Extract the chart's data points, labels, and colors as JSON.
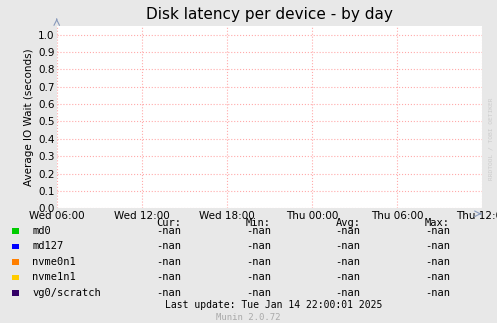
{
  "title": "Disk latency per device - by day",
  "ylabel": "Average IO Wait (seconds)",
  "background_color": "#e8e8e8",
  "plot_bg_color": "#ffffff",
  "grid_color": "#ffaaaa",
  "xticklabels": [
    "Wed 06:00",
    "Wed 12:00",
    "Wed 18:00",
    "Thu 00:00",
    "Thu 06:00",
    "Thu 12:00"
  ],
  "yticks": [
    0.0,
    0.1,
    0.2,
    0.3,
    0.4,
    0.5,
    0.6,
    0.7,
    0.8,
    0.9,
    1.0
  ],
  "ylim": [
    0.0,
    1.05
  ],
  "legend_items": [
    {
      "label": "md0",
      "color": "#00cc00"
    },
    {
      "label": "md127",
      "color": "#0000ff"
    },
    {
      "label": "nvme0n1",
      "color": "#ff7f00"
    },
    {
      "label": "nvme1n1",
      "color": "#ffcc00"
    },
    {
      "label": "vg0/scratch",
      "color": "#330066"
    }
  ],
  "table_headers": [
    "Cur:",
    "Min:",
    "Avg:",
    "Max:"
  ],
  "table_values": [
    "-nan",
    "-nan",
    "-nan",
    "-nan"
  ],
  "last_update": "Last update: Tue Jan 14 22:00:01 2025",
  "munin_version": "Munin 2.0.72",
  "watermark": "RRDTOOL / TOBI OETIKER",
  "title_fontsize": 11,
  "axis_label_fontsize": 7.5,
  "tick_fontsize": 7.5,
  "legend_fontsize": 7.5
}
